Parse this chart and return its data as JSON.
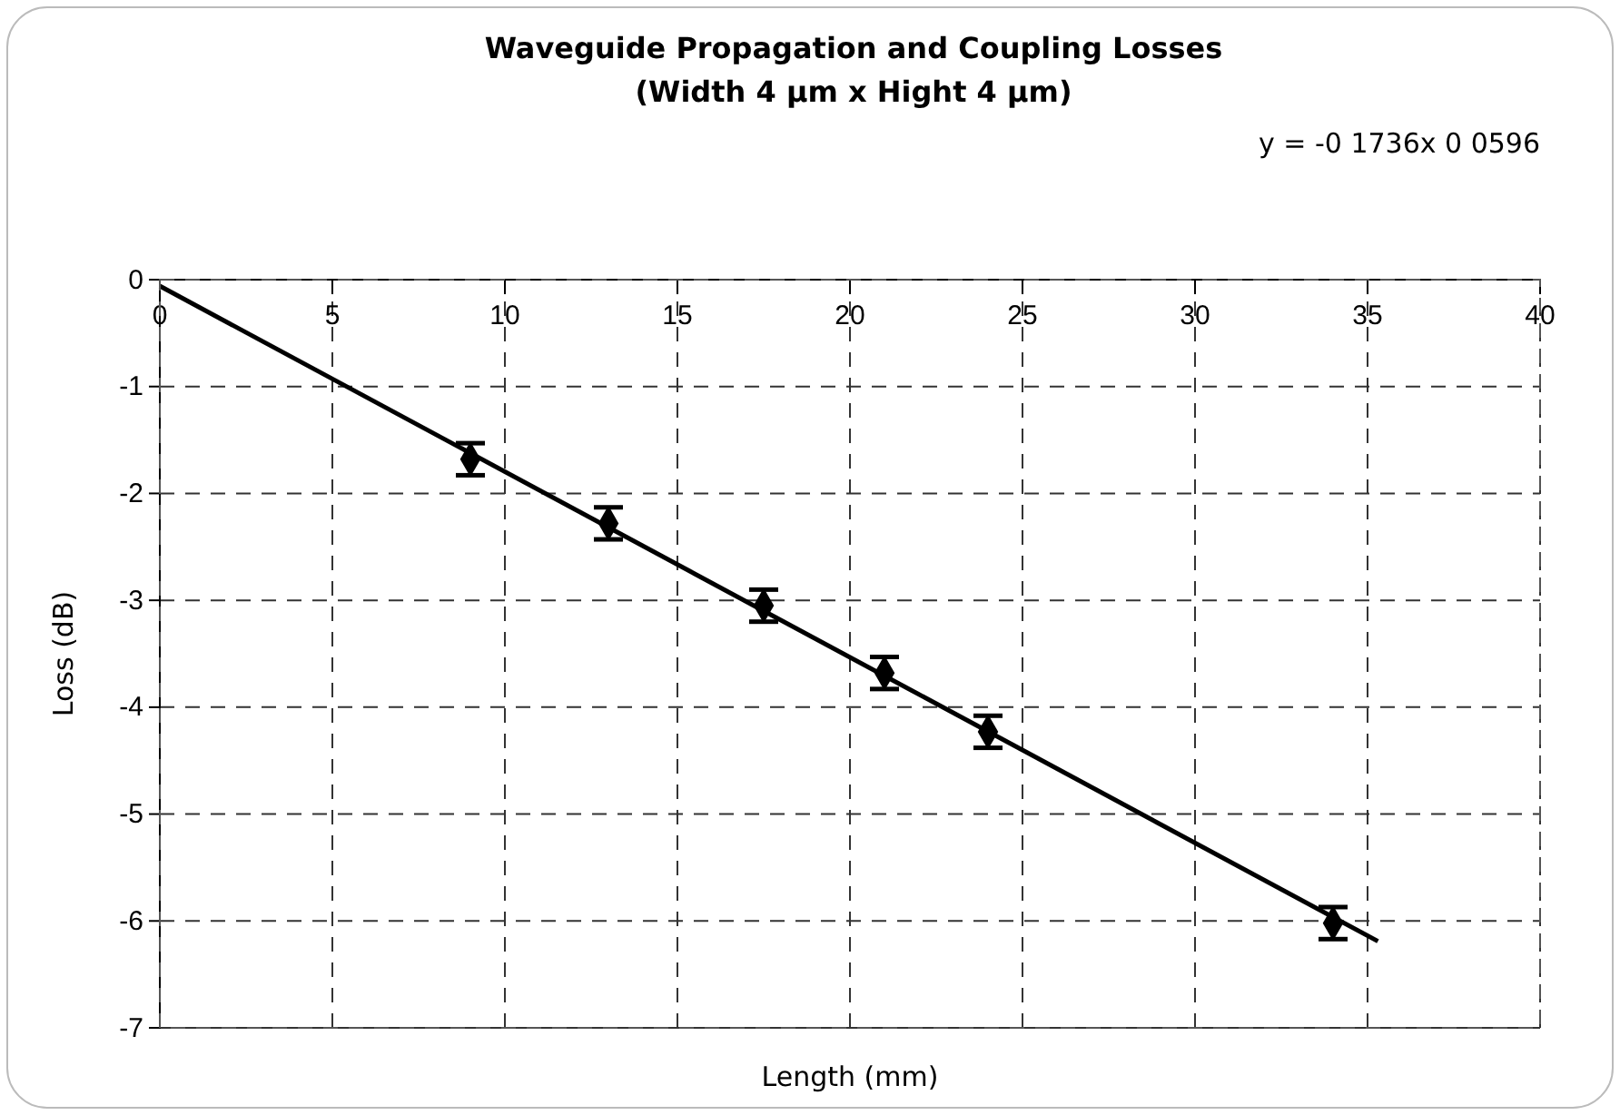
{
  "chart_data": {
    "type": "scatter",
    "title": "Waveguide Propagation and Coupling Losses",
    "subtitle": "(Width  4 µm x Hight  4 µm)",
    "xlabel": "Length (mm)",
    "ylabel": "Loss (dB)",
    "annotations": [
      "y = -0 1736x   0 0596"
    ],
    "xlim": [
      0,
      40
    ],
    "ylim": [
      -7,
      0
    ],
    "xticks": [
      0,
      5,
      10,
      15,
      20,
      25,
      30,
      35,
      40
    ],
    "yticks": [
      0,
      -1,
      -2,
      -3,
      -4,
      -5,
      -6,
      -7
    ],
    "grid": true,
    "series": [
      {
        "marker": "diamond",
        "color": "#000000",
        "x": [
          9,
          13,
          17.5,
          21,
          24,
          34
        ],
        "values": [
          -1.68,
          -2.28,
          -3.05,
          -3.68,
          -4.23,
          -6.02
        ],
        "errors": [
          0.15,
          0.15,
          0.15,
          0.15,
          0.15,
          0.15
        ]
      },
      {
        "type": "line",
        "color": "#000000",
        "x": [
          0,
          35.3
        ],
        "values": [
          -0.06,
          -6.19
        ],
        "line_style": "solid"
      }
    ]
  }
}
